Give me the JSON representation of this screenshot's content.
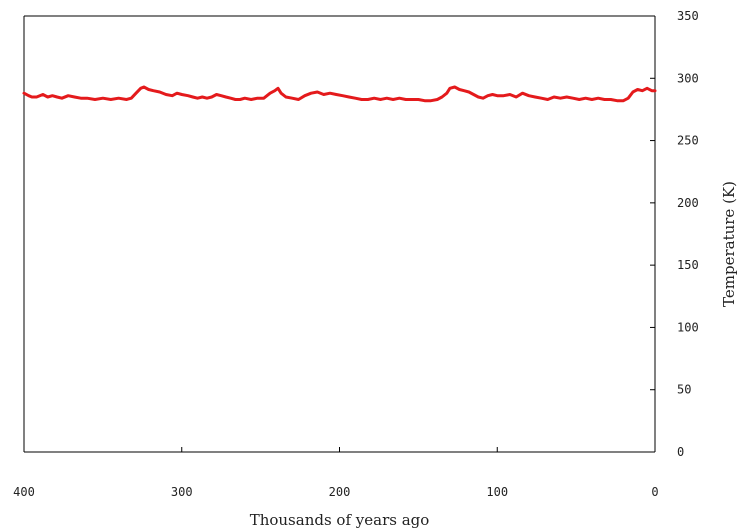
{
  "chart_data": {
    "type": "line",
    "title": "",
    "xlabel": "Thousands of years ago",
    "ylabel": "Temperature (K)",
    "xlim": [
      400,
      0
    ],
    "ylim": [
      0,
      350
    ],
    "x_ticks": [
      400,
      300,
      200,
      100,
      0
    ],
    "x_tick_labels": [
      "400",
      "300",
      "200",
      "100",
      "0"
    ],
    "y_ticks": [
      0,
      50,
      100,
      150,
      200,
      250,
      300,
      350
    ],
    "y_tick_labels": [
      "0",
      "50",
      "100",
      "150",
      "200",
      "250",
      "300",
      "350"
    ],
    "y_axis_side": "right",
    "grid": false,
    "legend": "none",
    "colors": {
      "line": "#e41a1c",
      "axis": "#000000",
      "text": "#222222"
    },
    "series": [
      {
        "x": [
          400,
          397,
          395,
          392,
          388,
          385,
          382,
          379,
          376,
          372,
          368,
          364,
          360,
          355,
          350,
          345,
          340,
          335,
          332,
          329,
          326,
          324,
          321,
          318,
          314,
          310,
          306,
          303,
          300,
          296,
          293,
          290,
          287,
          284,
          281,
          278,
          275,
          272,
          269,
          266,
          263,
          260,
          256,
          252,
          248,
          244,
          241,
          239,
          237,
          234,
          230,
          226,
          222,
          218,
          214,
          210,
          206,
          202,
          198,
          194,
          190,
          186,
          182,
          178,
          174,
          170,
          166,
          162,
          158,
          154,
          150,
          146,
          142,
          138,
          135,
          132,
          130,
          127,
          124,
          121,
          118,
          115,
          112,
          109,
          106,
          103,
          100,
          96,
          92,
          88,
          84,
          80,
          76,
          72,
          68,
          64,
          60,
          56,
          52,
          48,
          44,
          40,
          36,
          32,
          28,
          24,
          20,
          17,
          14,
          11,
          8,
          5,
          2,
          0
        ],
        "y": [
          288,
          286,
          285,
          285,
          287,
          285,
          286,
          285,
          284,
          286,
          285,
          284,
          284,
          283,
          284,
          283,
          284,
          283,
          284,
          288,
          292,
          293,
          291,
          290,
          289,
          287,
          286,
          288,
          287,
          286,
          285,
          284,
          285,
          284,
          285,
          287,
          286,
          285,
          284,
          283,
          283,
          284,
          283,
          284,
          284,
          288,
          290,
          292,
          288,
          285,
          284,
          283,
          286,
          288,
          289,
          287,
          288,
          287,
          286,
          285,
          284,
          283,
          283,
          284,
          283,
          284,
          283,
          284,
          283,
          283,
          283,
          282,
          282,
          283,
          285,
          288,
          292,
          293,
          291,
          290,
          289,
          287,
          285,
          284,
          286,
          287,
          286,
          286,
          287,
          285,
          288,
          286,
          285,
          284,
          283,
          285,
          284,
          285,
          284,
          283,
          284,
          283,
          284,
          283,
          283,
          282,
          282,
          284,
          289,
          291,
          290,
          292,
          290,
          290
        ]
      }
    ]
  }
}
